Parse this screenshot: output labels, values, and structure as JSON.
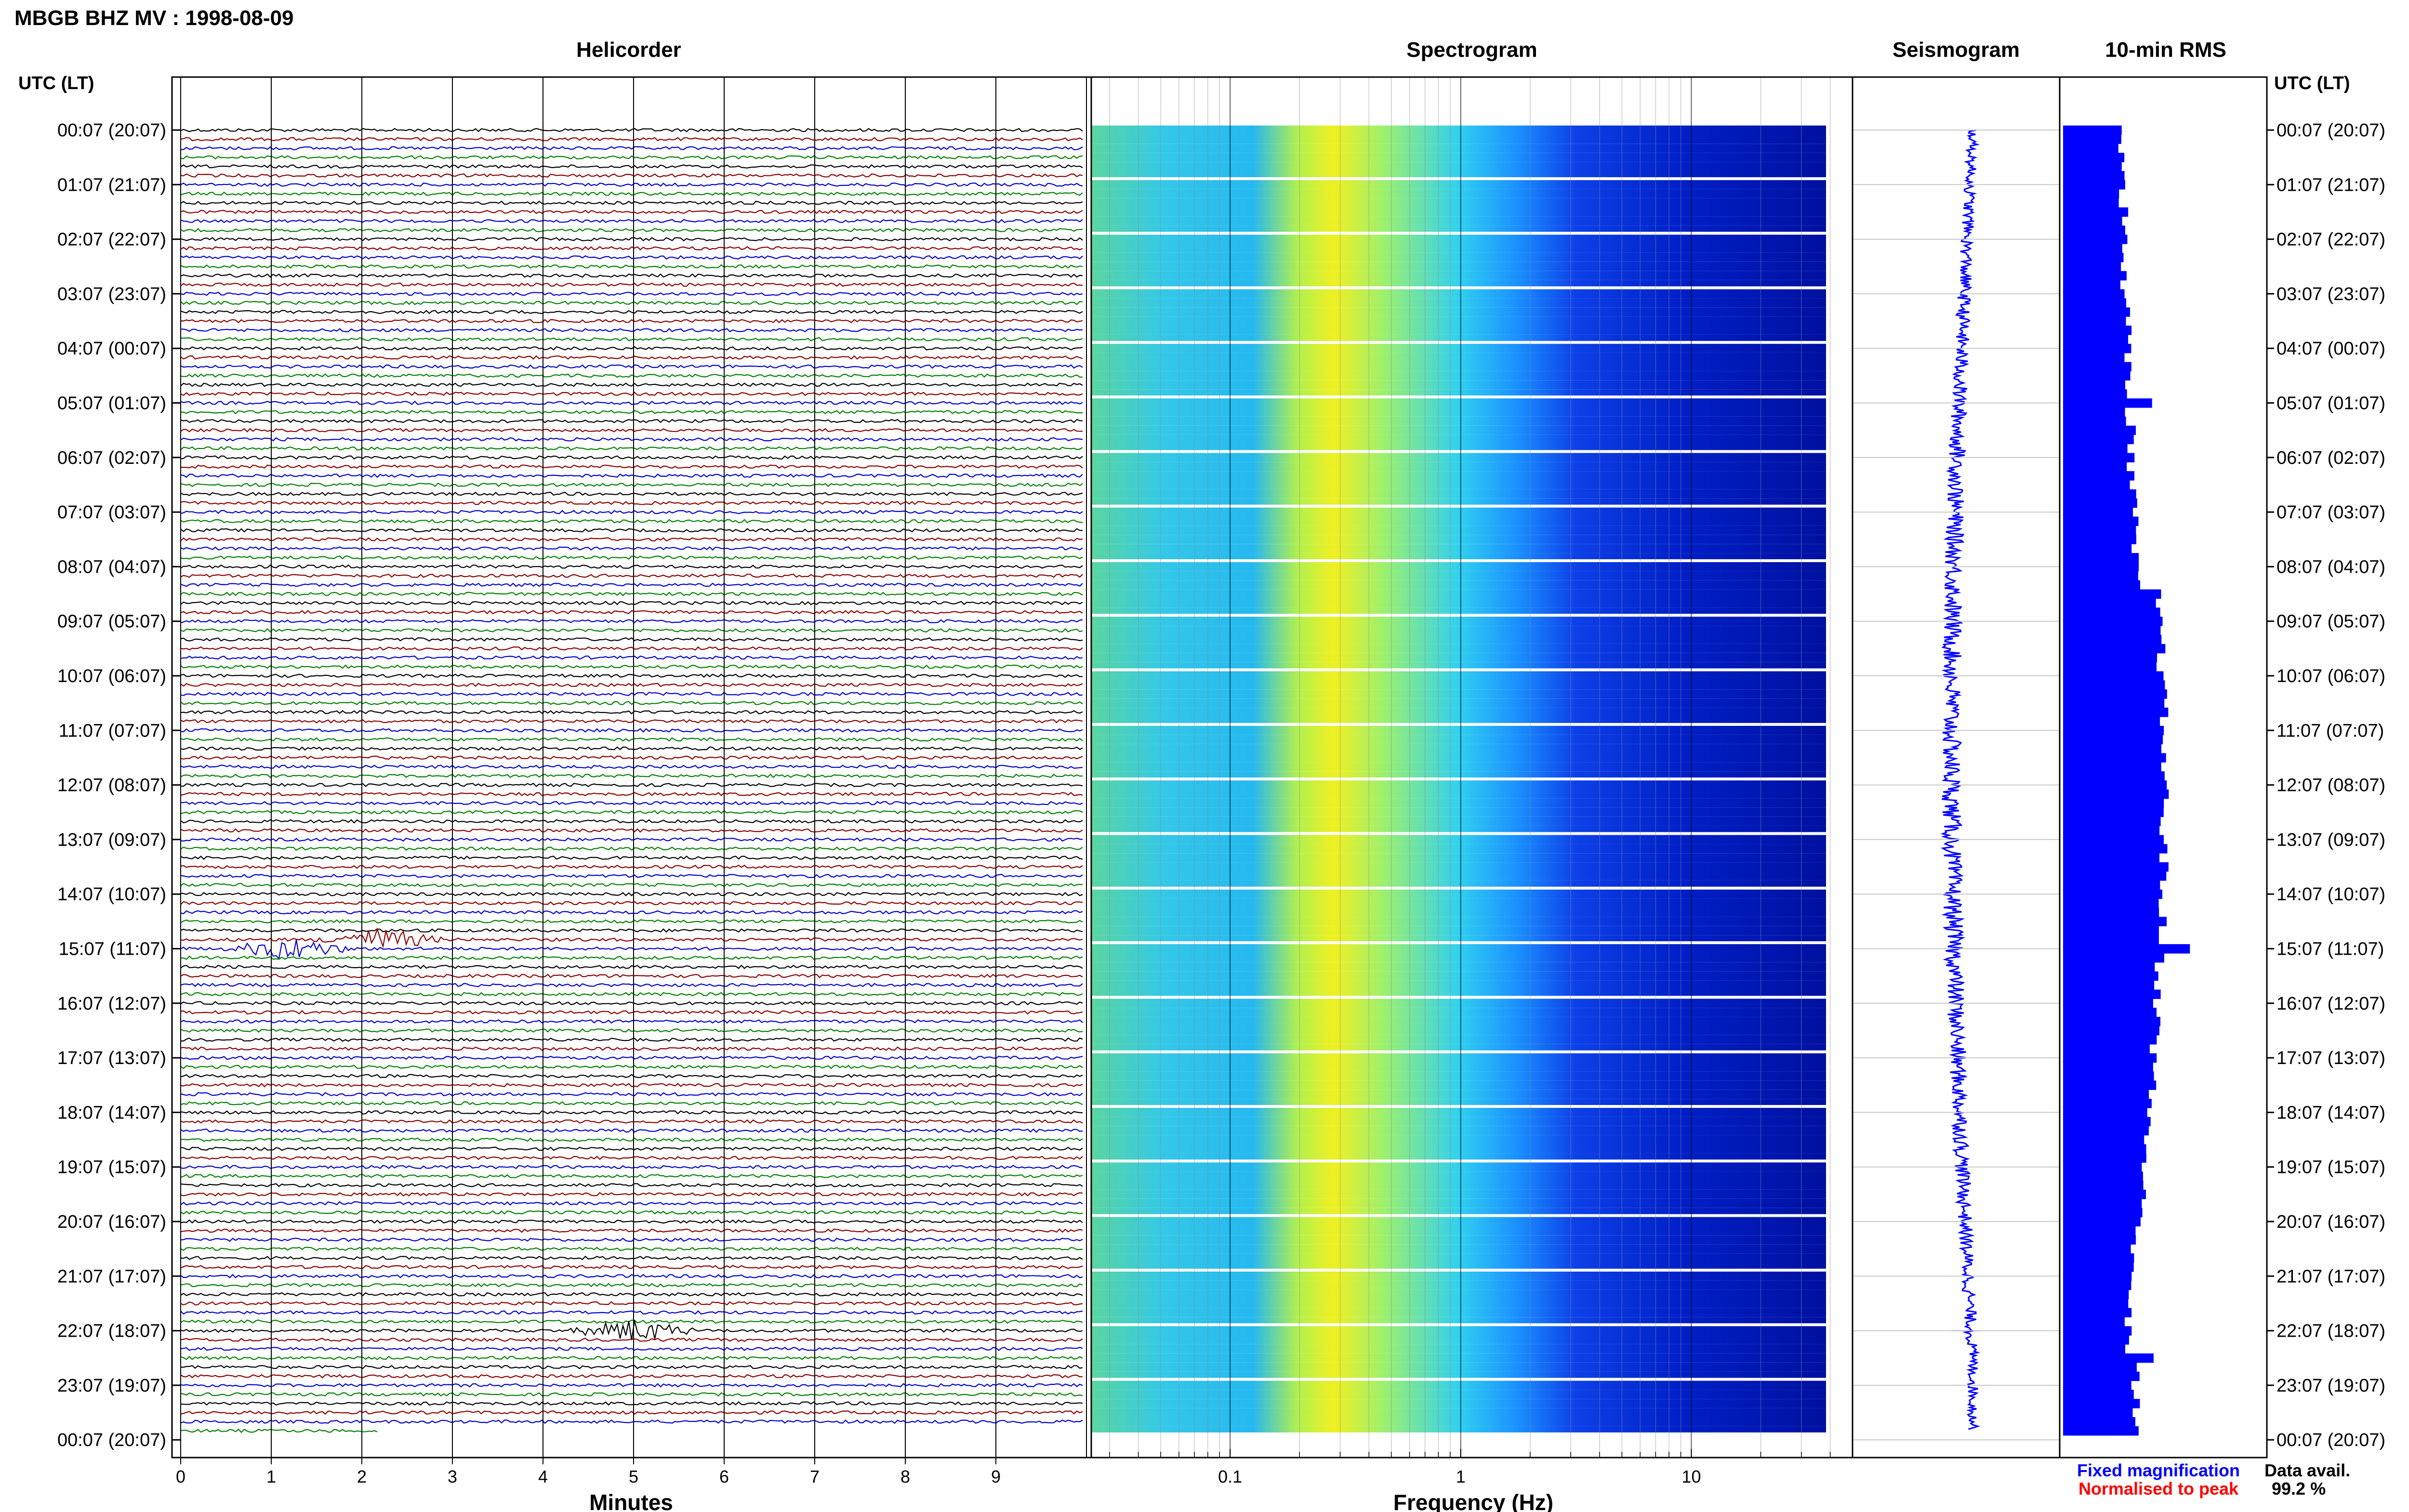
{
  "header": {
    "title": "MBGB BHZ MV : 1998-08-09"
  },
  "panels": {
    "helicorder_title": "Helicorder",
    "spectrogram_title": "Spectrogram",
    "seismogram_title": "Seismogram",
    "rms_title": "10-min RMS"
  },
  "time_axis": {
    "header": "UTC (LT)",
    "labels": [
      "00:07 (20:07)",
      "01:07 (21:07)",
      "02:07 (22:07)",
      "03:07 (23:07)",
      "04:07 (00:07)",
      "05:07 (01:07)",
      "06:07 (02:07)",
      "07:07 (03:07)",
      "08:07 (04:07)",
      "09:07 (05:07)",
      "10:07 (06:07)",
      "11:07 (07:07)",
      "12:07 (08:07)",
      "13:07 (09:07)",
      "14:07 (10:07)",
      "15:07 (11:07)",
      "16:07 (12:07)",
      "17:07 (13:07)",
      "18:07 (14:07)",
      "19:07 (15:07)",
      "20:07 (16:07)",
      "21:07 (17:07)",
      "22:07 (18:07)",
      "23:07 (19:07)",
      "00:07 (20:07)"
    ]
  },
  "helicorder_axis": {
    "label": "Minutes",
    "ticks": [
      "0",
      "1",
      "2",
      "3",
      "4",
      "5",
      "6",
      "7",
      "8",
      "9"
    ]
  },
  "spectrogram_axis": {
    "label": "Frequency (Hz)",
    "ticks": [
      "0.1",
      "1",
      "10"
    ]
  },
  "legend": {
    "fixed": "Fixed magnification",
    "normalised": "Normalised to peak",
    "fixed_color": "#0000ff",
    "normalised_color": "#ff0000"
  },
  "data_availability": {
    "label": "Data avail.",
    "value": "99.2 %"
  },
  "chart_data": [
    {
      "type": "line",
      "panel": "Helicorder",
      "xlabel": "Minutes",
      "xlim": [
        0,
        10
      ],
      "rows_per_hour": 6,
      "trace_colors": [
        "#000000",
        "#8b0000",
        "#0000cc",
        "#008000"
      ],
      "events": [
        {
          "time_utc": "15:07",
          "minute": 1.2,
          "color": "#0000cc"
        },
        {
          "time_utc": "14:57",
          "minute": 2.2,
          "color": "#008000"
        },
        {
          "time_utc": "22:07",
          "minute": 5.0,
          "color": "#8b0000"
        }
      ]
    },
    {
      "type": "heatmap",
      "panel": "Spectrogram",
      "xlabel": "Frequency (Hz)",
      "xscale": "log",
      "xlim": [
        0.025,
        50
      ],
      "colormap": [
        "#ffff00",
        "#00e0c0",
        "#00a0ff",
        "#0030e0",
        "#000090"
      ]
    },
    {
      "type": "line",
      "panel": "Seismogram",
      "legend": "Fixed magnification"
    },
    {
      "type": "bar",
      "panel": "10-min RMS",
      "orientation": "horizontal",
      "spikes_utc": [
        "05:07",
        "15:07",
        "22:07"
      ]
    }
  ]
}
